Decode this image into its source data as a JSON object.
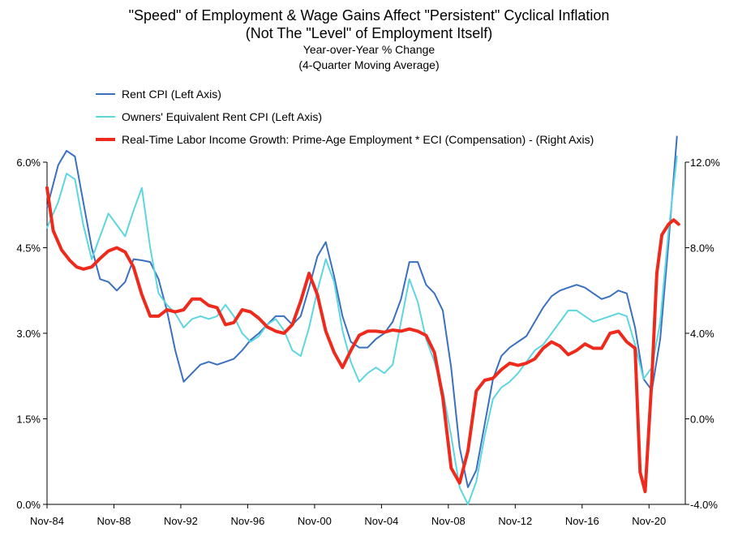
{
  "title": "\"Speed\" of Employment & Wage Gains Affect \"Persistent\" Cyclical Inflation",
  "title_line2": "(Not The \"Level\" of Employment Itself)",
  "subtitle": "Year-over-Year % Change",
  "subtitle_line2": "(4-Quarter Moving Average)",
  "chart_data": {
    "type": "line",
    "x_axis": {
      "tick_labels": [
        "Nov-84",
        "Nov-88",
        "Nov-92",
        "Nov-96",
        "Nov-00",
        "Nov-04",
        "Nov-08",
        "Nov-12",
        "Nov-16",
        "Nov-20"
      ],
      "tick_years": [
        1984.83,
        1988.83,
        1992.83,
        1996.83,
        2000.83,
        2004.83,
        2008.83,
        2012.83,
        2016.83,
        2020.83
      ],
      "range": [
        1984.83,
        2023.0
      ]
    },
    "y_left": {
      "ylim": [
        0,
        6.0
      ],
      "tick_values": [
        0,
        1.5,
        3.0,
        4.5,
        6.0
      ],
      "tick_labels": [
        "0.0%",
        "1.5%",
        "3.0%",
        "4.5%",
        "6.0%"
      ]
    },
    "y_right": {
      "ylim": [
        -4.0,
        12.0
      ],
      "tick_values": [
        -4,
        0,
        4,
        8,
        12
      ],
      "tick_labels": [
        "-4.0%",
        "0.0%",
        "4.0%",
        "8.0%",
        "12.0%"
      ]
    },
    "grid": "none",
    "legend_position": "top-left",
    "series": [
      {
        "name": "Rent CPI (Left Axis)",
        "axis": "left",
        "color": "#3a70c0",
        "x": [
          1984.83,
          1985.5,
          1986.0,
          1986.5,
          1987.0,
          1987.5,
          1988.0,
          1988.5,
          1989.0,
          1989.5,
          1990.0,
          1990.5,
          1991.0,
          1991.5,
          1992.0,
          1992.5,
          1993.0,
          1993.5,
          1994.0,
          1994.5,
          1995.0,
          1995.5,
          1996.0,
          1996.5,
          1997.0,
          1997.5,
          1998.0,
          1998.5,
          1999.0,
          1999.5,
          2000.0,
          2000.5,
          2001.0,
          2001.5,
          2002.0,
          2002.5,
          2003.0,
          2003.5,
          2004.0,
          2004.5,
          2005.0,
          2005.5,
          2006.0,
          2006.5,
          2007.0,
          2007.5,
          2008.0,
          2008.5,
          2009.0,
          2009.5,
          2010.0,
          2010.5,
          2011.0,
          2011.5,
          2012.0,
          2012.5,
          2013.0,
          2013.5,
          2014.0,
          2014.5,
          2015.0,
          2015.5,
          2016.0,
          2016.5,
          2017.0,
          2017.5,
          2018.0,
          2018.5,
          2019.0,
          2019.5,
          2020.0,
          2020.5,
          2021.0,
          2021.5,
          2022.0,
          2022.5
        ],
        "y": [
          5.2,
          5.95,
          6.2,
          6.1,
          5.3,
          4.5,
          3.95,
          3.9,
          3.75,
          3.9,
          4.3,
          4.28,
          4.25,
          3.95,
          3.4,
          2.7,
          2.15,
          2.3,
          2.45,
          2.5,
          2.45,
          2.5,
          2.55,
          2.7,
          2.88,
          3.0,
          3.15,
          3.3,
          3.3,
          3.15,
          3.3,
          3.8,
          4.35,
          4.6,
          4.0,
          3.3,
          2.85,
          2.75,
          2.75,
          2.9,
          3.0,
          3.2,
          3.6,
          4.25,
          4.25,
          3.85,
          3.7,
          3.4,
          2.4,
          1.0,
          0.3,
          0.6,
          1.4,
          2.2,
          2.6,
          2.75,
          2.85,
          2.95,
          3.2,
          3.45,
          3.65,
          3.75,
          3.8,
          3.85,
          3.8,
          3.7,
          3.6,
          3.65,
          3.75,
          3.7,
          3.1,
          2.2,
          2.0,
          2.9,
          4.6,
          6.45
        ]
      },
      {
        "name": "Owners' Equivalent Rent CPI (Left Axis)",
        "axis": "left",
        "color": "#5dd6df",
        "x": [
          1984.83,
          1985.5,
          1986.0,
          1986.5,
          1987.0,
          1987.5,
          1988.0,
          1988.5,
          1989.0,
          1989.5,
          1990.0,
          1990.5,
          1991.0,
          1991.5,
          1992.0,
          1992.5,
          1993.0,
          1993.5,
          1994.0,
          1994.5,
          1995.0,
          1995.5,
          1996.0,
          1996.5,
          1997.0,
          1997.5,
          1998.0,
          1998.5,
          1999.0,
          1999.5,
          2000.0,
          2000.5,
          2001.0,
          2001.5,
          2002.0,
          2002.5,
          2003.0,
          2003.5,
          2004.0,
          2004.5,
          2005.0,
          2005.5,
          2006.0,
          2006.5,
          2007.0,
          2007.5,
          2008.0,
          2008.5,
          2009.0,
          2009.5,
          2010.0,
          2010.5,
          2011.0,
          2011.5,
          2012.0,
          2012.5,
          2013.0,
          2013.5,
          2014.0,
          2014.5,
          2015.0,
          2015.5,
          2016.0,
          2016.5,
          2017.0,
          2017.5,
          2018.0,
          2018.5,
          2019.0,
          2019.5,
          2020.0,
          2020.5,
          2021.0,
          2021.5,
          2022.0,
          2022.5
        ],
        "y": [
          4.85,
          5.3,
          5.8,
          5.7,
          4.9,
          4.3,
          4.7,
          5.1,
          4.9,
          4.7,
          5.15,
          5.55,
          4.5,
          3.7,
          3.5,
          3.35,
          3.1,
          3.25,
          3.3,
          3.25,
          3.3,
          3.5,
          3.3,
          3.0,
          2.85,
          2.95,
          3.15,
          3.25,
          3.05,
          2.7,
          2.6,
          3.1,
          3.75,
          4.3,
          3.9,
          3.05,
          2.5,
          2.15,
          2.3,
          2.4,
          2.3,
          2.45,
          3.2,
          3.95,
          3.55,
          2.9,
          2.5,
          2.0,
          1.2,
          0.3,
          0.0,
          0.4,
          1.2,
          1.85,
          2.05,
          2.15,
          2.3,
          2.5,
          2.7,
          2.8,
          3.0,
          3.2,
          3.4,
          3.4,
          3.3,
          3.2,
          3.25,
          3.3,
          3.35,
          3.3,
          2.8,
          2.2,
          2.4,
          3.2,
          4.8,
          6.1
        ]
      },
      {
        "name": "Real-Time Labor Income Growth: Prime-Age Employment * ECI (Compensation) - (Right Axis)",
        "axis": "right",
        "color": "#ee2a1c",
        "x": [
          1984.83,
          1985.2,
          1985.7,
          1986.2,
          1986.6,
          1987.0,
          1987.5,
          1988.0,
          1988.5,
          1989.0,
          1989.5,
          1990.0,
          1990.5,
          1991.0,
          1991.5,
          1992.0,
          1992.5,
          1993.0,
          1993.5,
          1994.0,
          1994.5,
          1995.0,
          1995.5,
          1996.0,
          1996.5,
          1997.0,
          1997.5,
          1998.0,
          1998.5,
          1999.0,
          1999.5,
          2000.0,
          2000.5,
          2001.0,
          2001.5,
          2002.0,
          2002.5,
          2003.0,
          2003.5,
          2004.0,
          2004.5,
          2005.0,
          2005.5,
          2006.0,
          2006.5,
          2007.0,
          2007.5,
          2008.0,
          2008.5,
          2009.0,
          2009.5,
          2010.0,
          2010.5,
          2011.0,
          2011.5,
          2012.0,
          2012.5,
          2013.0,
          2013.5,
          2014.0,
          2014.5,
          2015.0,
          2015.5,
          2016.0,
          2016.5,
          2017.0,
          2017.5,
          2018.0,
          2018.5,
          2019.0,
          2019.5,
          2020.0,
          2020.3,
          2020.6,
          2021.0,
          2021.3,
          2021.6,
          2022.0,
          2022.3,
          2022.6
        ],
        "y": [
          10.8,
          8.8,
          7.9,
          7.4,
          7.1,
          7.0,
          7.1,
          7.5,
          7.85,
          8.0,
          7.8,
          7.1,
          5.8,
          4.8,
          4.8,
          5.1,
          5.0,
          5.1,
          5.6,
          5.6,
          5.3,
          5.2,
          4.4,
          4.5,
          5.1,
          5.0,
          4.7,
          4.3,
          4.1,
          4.0,
          4.4,
          5.5,
          6.8,
          5.8,
          4.1,
          3.1,
          2.4,
          3.2,
          3.9,
          4.1,
          4.1,
          4.05,
          4.15,
          4.1,
          4.2,
          4.1,
          3.9,
          3.1,
          1.0,
          -2.3,
          -3.0,
          -1.5,
          1.3,
          1.8,
          1.9,
          2.3,
          2.6,
          2.5,
          2.6,
          2.8,
          3.3,
          3.6,
          3.4,
          3.0,
          3.2,
          3.5,
          3.3,
          3.3,
          4.0,
          4.1,
          3.6,
          3.3,
          -2.5,
          -3.4,
          1.9,
          6.8,
          8.6,
          9.1,
          9.3,
          9.1
        ]
      }
    ]
  }
}
